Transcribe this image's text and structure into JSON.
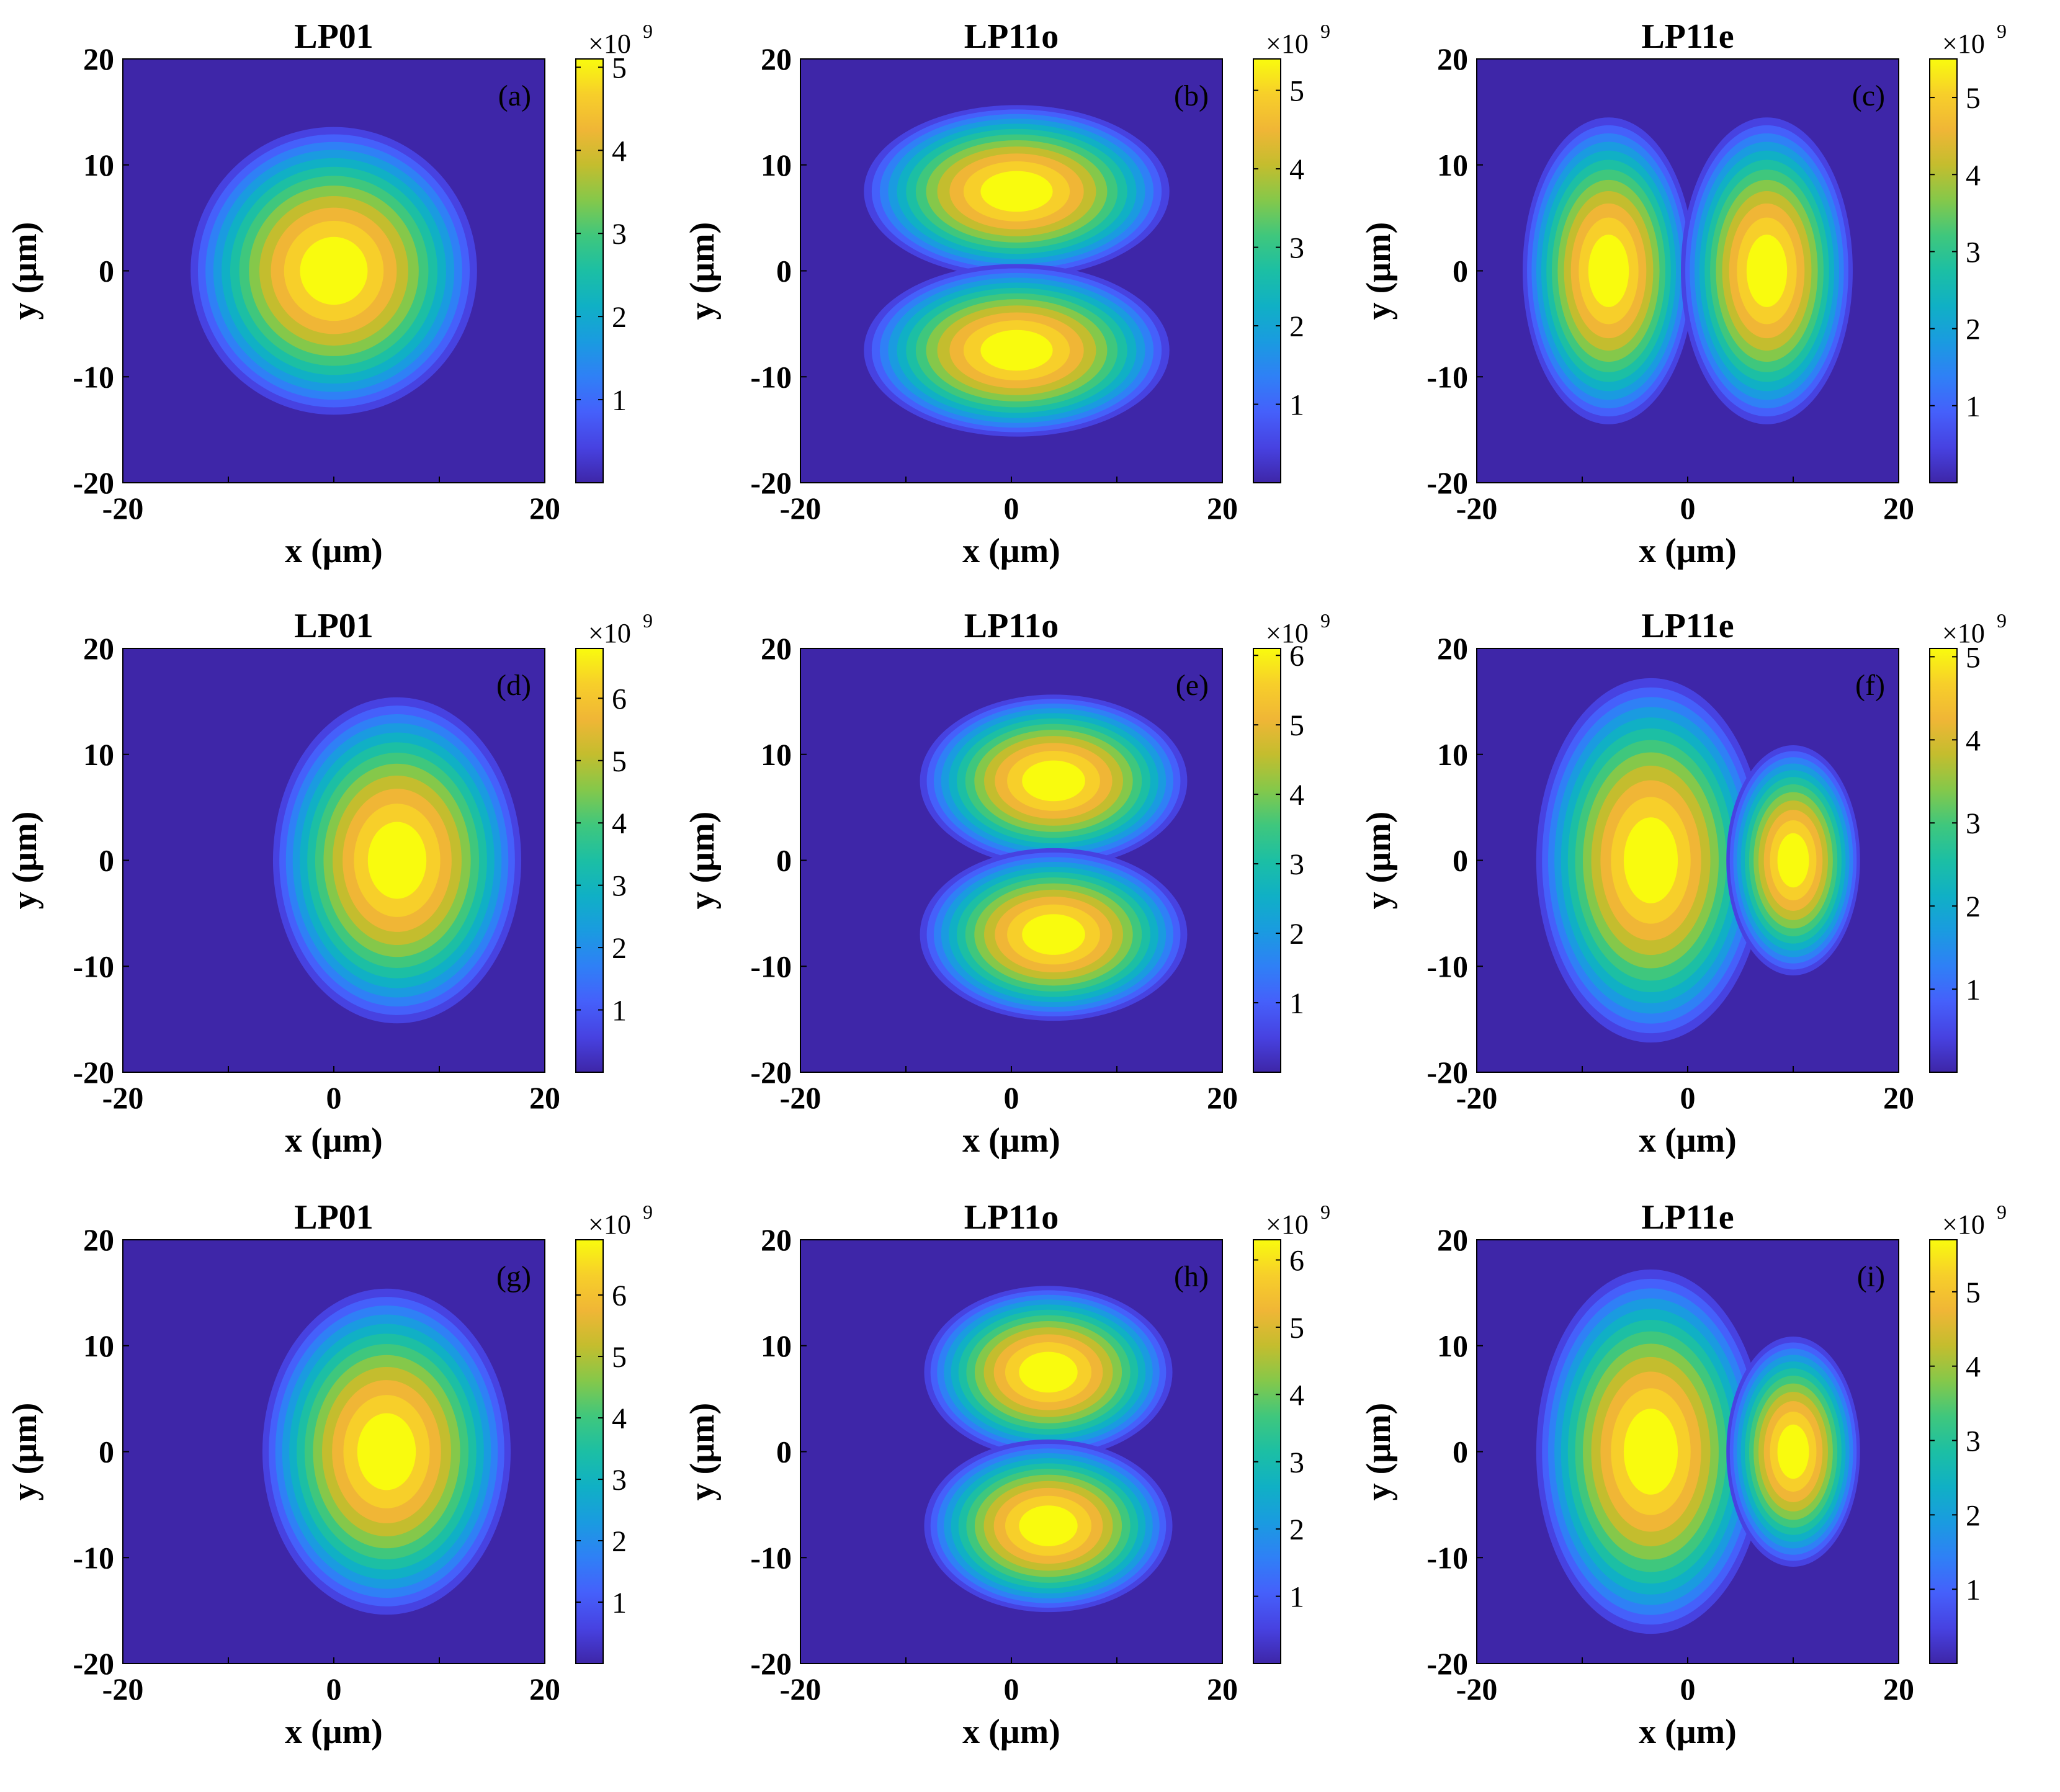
{
  "figure": {
    "description_free": true
  },
  "colormap": [
    "#3e26a8",
    "#4742e1",
    "#4560fb",
    "#2f80f6",
    "#1a9be0",
    "#10b0c5",
    "#1cbfa4",
    "#3fc77d",
    "#85c84a",
    "#c4bd2e",
    "#f0b636",
    "#f7cf2a",
    "#f9fb0e"
  ],
  "chart_data": [
    {
      "type": "heatmap",
      "panel": "(a)",
      "title": "LP01",
      "xlabel": "x (μm)",
      "ylabel": "y (μm)",
      "xlim": [
        -20,
        20
      ],
      "ylim": [
        -20,
        20
      ],
      "xticks": [
        "-20",
        "",
        "20"
      ],
      "yticks": [
        "-20",
        "-10",
        "0",
        "10",
        "20"
      ],
      "colorbar": {
        "exponent": "×10",
        "power": "9",
        "max": 5.1,
        "ticks": [
          "1",
          "2",
          "3",
          "4",
          "5"
        ]
      },
      "lobes": [
        {
          "cx": 0,
          "cy": 0,
          "rx": 7.5,
          "ry": 7.5,
          "peak": 5.1
        }
      ]
    },
    {
      "type": "heatmap",
      "panel": "(b)",
      "title": "LP11o",
      "xlabel": "x (μm)",
      "ylabel": "y (μm)",
      "xlim": [
        -20,
        20
      ],
      "ylim": [
        -20,
        20
      ],
      "xticks": [
        "-20",
        "0",
        "20"
      ],
      "yticks": [
        "-20",
        "-10",
        "0",
        "10",
        "20"
      ],
      "colorbar": {
        "exponent": "×10",
        "power": "9",
        "max": 5.4,
        "ticks": [
          "1",
          "2",
          "3",
          "4",
          "5"
        ]
      },
      "lobes": [
        {
          "cx": 0.5,
          "cy": 7.5,
          "rx": 8,
          "ry": 4.5,
          "peak": 5.4
        },
        {
          "cx": 0.5,
          "cy": -7.5,
          "rx": 8,
          "ry": 4.5,
          "peak": 5.4
        }
      ]
    },
    {
      "type": "heatmap",
      "panel": "(c)",
      "title": "LP11e",
      "xlabel": "x (μm)",
      "ylabel": "y (μm)",
      "xlim": [
        -20,
        20
      ],
      "ylim": [
        -20,
        20
      ],
      "xticks": [
        "-20",
        "0",
        "20"
      ],
      "yticks": [
        "-20",
        "-10",
        "0",
        "10",
        "20"
      ],
      "colorbar": {
        "exponent": "×10",
        "power": "9",
        "max": 5.5,
        "ticks": [
          "1",
          "2",
          "3",
          "4",
          "5"
        ]
      },
      "lobes": [
        {
          "cx": -7.5,
          "cy": 0,
          "rx": 4.5,
          "ry": 8,
          "peak": 5.5
        },
        {
          "cx": 7.5,
          "cy": 0,
          "rx": 4.5,
          "ry": 8,
          "peak": 5.5
        }
      ]
    },
    {
      "type": "heatmap",
      "panel": "(d)",
      "title": "LP01",
      "xlabel": "x (μm)",
      "ylabel": "y (μm)",
      "xlim": [
        -20,
        20
      ],
      "ylim": [
        -20,
        20
      ],
      "xticks": [
        "-20",
        "0",
        "20"
      ],
      "yticks": [
        "-20",
        "-10",
        "0",
        "10",
        "20"
      ],
      "colorbar": {
        "exponent": "×10",
        "power": "9",
        "max": 6.8,
        "ticks": [
          "1",
          "2",
          "3",
          "4",
          "5",
          "6"
        ]
      },
      "lobes": [
        {
          "cx": 6,
          "cy": 0,
          "rx": 6.5,
          "ry": 8.5,
          "peak": 6.8
        }
      ]
    },
    {
      "type": "heatmap",
      "panel": "(e)",
      "title": "LP11o",
      "xlabel": "x (μm)",
      "ylabel": "y (μm)",
      "xlim": [
        -20,
        20
      ],
      "ylim": [
        -20,
        20
      ],
      "xticks": [
        "-20",
        "0",
        "20"
      ],
      "yticks": [
        "-20",
        "-10",
        "0",
        "10",
        "20"
      ],
      "colorbar": {
        "exponent": "×10",
        "power": "9",
        "max": 6.1,
        "ticks": [
          "1",
          "2",
          "3",
          "4",
          "5",
          "6"
        ]
      },
      "lobes": [
        {
          "cx": 4,
          "cy": 7.5,
          "rx": 7,
          "ry": 4.5,
          "peak": 6.1
        },
        {
          "cx": 4,
          "cy": -7,
          "rx": 7,
          "ry": 4.5,
          "peak": 6.1
        }
      ]
    },
    {
      "type": "heatmap",
      "panel": "(f)",
      "title": "LP11e",
      "xlabel": "x (μm)",
      "ylabel": "y (μm)",
      "xlim": [
        -20,
        20
      ],
      "ylim": [
        -20,
        20
      ],
      "xticks": [
        "-20",
        "0",
        "20"
      ],
      "yticks": [
        "-20",
        "-10",
        "0",
        "10",
        "20"
      ],
      "colorbar": {
        "exponent": "×10",
        "power": "9",
        "max": 5.1,
        "ticks": [
          "1",
          "2",
          "3",
          "4",
          "5"
        ]
      },
      "lobes": [
        {
          "cx": -3.5,
          "cy": 0,
          "rx": 6,
          "ry": 9.5,
          "peak": 5.1
        },
        {
          "cx": 10,
          "cy": 0,
          "rx": 3.5,
          "ry": 6,
          "peak": 5.1
        }
      ]
    },
    {
      "type": "heatmap",
      "panel": "(g)",
      "title": "LP01",
      "xlabel": "x (μm)",
      "ylabel": "y (μm)",
      "xlim": [
        -20,
        20
      ],
      "ylim": [
        -20,
        20
      ],
      "xticks": [
        "-20",
        "0",
        "20"
      ],
      "yticks": [
        "-20",
        "-10",
        "0",
        "10",
        "20"
      ],
      "colorbar": {
        "exponent": "×10",
        "power": "9",
        "max": 6.9,
        "ticks": [
          "1",
          "2",
          "3",
          "4",
          "5",
          "6"
        ]
      },
      "lobes": [
        {
          "cx": 5,
          "cy": 0,
          "rx": 6.5,
          "ry": 8.5,
          "peak": 6.9
        }
      ]
    },
    {
      "type": "heatmap",
      "panel": "(h)",
      "title": "LP11o",
      "xlabel": "x (μm)",
      "ylabel": "y (μm)",
      "xlim": [
        -20,
        20
      ],
      "ylim": [
        -20,
        20
      ],
      "xticks": [
        "-20",
        "0",
        "20"
      ],
      "yticks": [
        "-20",
        "-10",
        "0",
        "10",
        "20"
      ],
      "colorbar": {
        "exponent": "×10",
        "power": "9",
        "max": 6.3,
        "ticks": [
          "1",
          "2",
          "3",
          "4",
          "5",
          "6"
        ]
      },
      "lobes": [
        {
          "cx": 3.5,
          "cy": 7.5,
          "rx": 6.5,
          "ry": 4.5,
          "peak": 6.3
        },
        {
          "cx": 3.5,
          "cy": -7,
          "rx": 6.5,
          "ry": 4.5,
          "peak": 6.3
        }
      ]
    },
    {
      "type": "heatmap",
      "panel": "(i)",
      "title": "LP11e",
      "xlabel": "x (μm)",
      "ylabel": "y (μm)",
      "xlim": [
        -20,
        20
      ],
      "ylim": [
        -20,
        20
      ],
      "xticks": [
        "-20",
        "0",
        "20"
      ],
      "yticks": [
        "-20",
        "-10",
        "0",
        "10",
        "20"
      ],
      "colorbar": {
        "exponent": "×10",
        "power": "9",
        "max": 5.7,
        "ticks": [
          "1",
          "2",
          "3",
          "4",
          "5"
        ]
      },
      "lobes": [
        {
          "cx": -3.5,
          "cy": 0,
          "rx": 6,
          "ry": 9.5,
          "peak": 5.7
        },
        {
          "cx": 10,
          "cy": 0,
          "rx": 3.5,
          "ry": 6,
          "peak": 5.7
        }
      ]
    }
  ]
}
